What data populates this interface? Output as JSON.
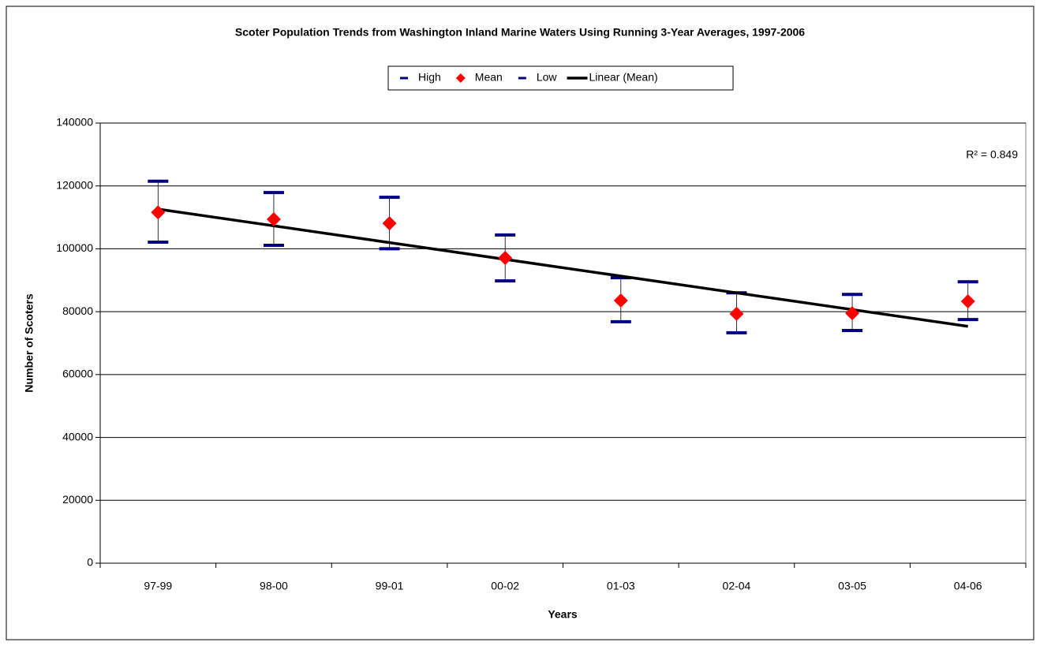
{
  "chart_data": {
    "type": "errorbar",
    "title": "Scoter Population Trends from Washington Inland Marine Waters Using Running 3-Year Averages, 1997-2006",
    "x_label": "Years",
    "y_label": "Number of Scoters",
    "categories": [
      "97-99",
      "98-00",
      "99-01",
      "00-02",
      "01-03",
      "02-04",
      "03-05",
      "04-06"
    ],
    "series": [
      {
        "name": "High",
        "color": "#000080",
        "values": [
          121500,
          117900,
          116400,
          104400,
          90800,
          86000,
          85500,
          89500
        ]
      },
      {
        "name": "Mean",
        "color": "#ff0000",
        "values": [
          111600,
          109400,
          108100,
          97100,
          83550,
          79300,
          79500,
          83300
        ]
      },
      {
        "name": "Low",
        "color": "#000080",
        "values": [
          102100,
          101100,
          100000,
          89800,
          76800,
          73300,
          74000,
          77500
        ]
      }
    ],
    "trendline": {
      "name": "Linear (Mean)",
      "color": "#000000",
      "annotation": "R² = 0.849"
    },
    "ylim": [
      0,
      140000
    ],
    "yticks": [
      0,
      20000,
      40000,
      60000,
      80000,
      100000,
      120000,
      140000
    ],
    "grid": true,
    "legend": "top"
  }
}
